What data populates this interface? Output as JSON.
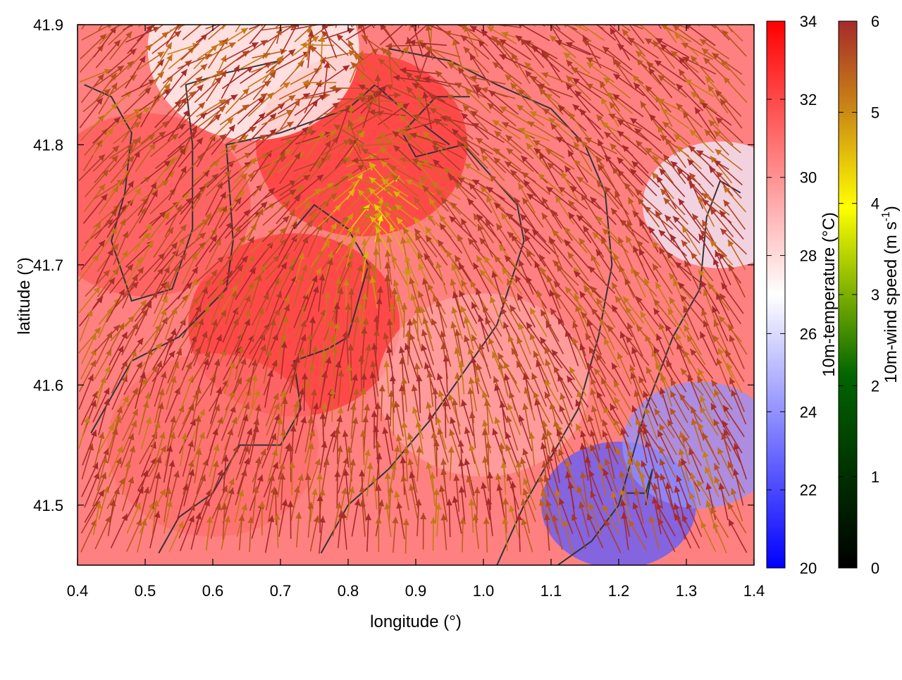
{
  "chart_data": {
    "type": "heatmap",
    "title": "",
    "xlabel": "longitude (°)",
    "ylabel": "latitude (°)",
    "xlim": [
      0.4,
      1.4
    ],
    "ylim": [
      41.45,
      41.9
    ],
    "x_ticks": [
      "0.4",
      "0.5",
      "0.6",
      "0.7",
      "0.8",
      "0.9",
      "1.0",
      "1.1",
      "1.2",
      "1.3",
      "1.4"
    ],
    "y_ticks": [
      "41.5",
      "41.6",
      "41.7",
      "41.8",
      "41.9"
    ],
    "temperature_colorbar": {
      "label": "10m-temperature (°C)",
      "range": [
        20,
        34
      ],
      "ticks": [
        "20",
        "22",
        "24",
        "26",
        "28",
        "30",
        "32",
        "34"
      ],
      "colors": [
        "#0000ff",
        "#ffffff",
        "#ff0000"
      ]
    },
    "wind_colorbar": {
      "label_main": "10m-wind speed (m s",
      "label_sup": "-1",
      "label_end": ")",
      "range": [
        0,
        6
      ],
      "ticks": [
        "0",
        "1",
        "2",
        "3",
        "4",
        "5",
        "6"
      ],
      "colors": [
        "#000000",
        "#006400",
        "#ffff00",
        "#cd8c14",
        "#a52a2a"
      ]
    },
    "temperature_features": [
      {
        "lon": 0.82,
        "lat": 41.8,
        "value": 32.5
      },
      {
        "lon": 0.72,
        "lat": 41.65,
        "value": 32.5
      },
      {
        "lon": 0.5,
        "lat": 41.75,
        "value": 31.5
      },
      {
        "lon": 0.6,
        "lat": 41.55,
        "value": 31.0
      },
      {
        "lon": 1.0,
        "lat": 41.6,
        "value": 29.5
      },
      {
        "lon": 1.2,
        "lat": 41.5,
        "value": 22.5
      },
      {
        "lon": 1.32,
        "lat": 41.55,
        "value": 24.0
      },
      {
        "lon": 1.35,
        "lat": 41.75,
        "value": 26.5
      },
      {
        "lon": 0.66,
        "lat": 41.88,
        "value": 27.0
      }
    ],
    "wind_field": {
      "convergence_lon": 0.84,
      "convergence_lat": 41.72,
      "typical_speed": 5.5
    }
  }
}
